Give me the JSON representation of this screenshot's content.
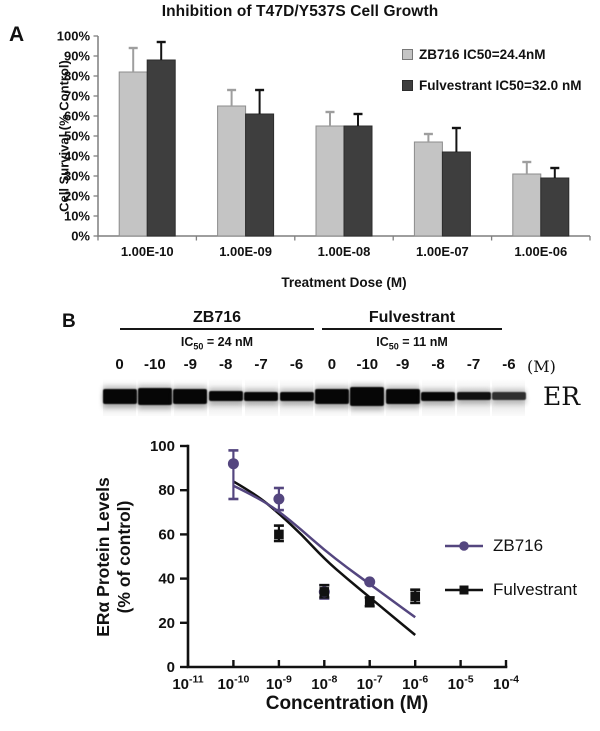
{
  "panels": {
    "a_label": "A",
    "b_label": "B"
  },
  "panel_b": {
    "blot": {
      "groups": [
        {
          "name": "ZB716",
          "ic50_prefix": "IC",
          "ic50_sub": "50",
          "ic50_rest": " = 24 nM"
        },
        {
          "name": "Fulvestrant",
          "ic50_prefix": "IC",
          "ic50_sub": "50",
          "ic50_rest": " = 11 nM"
        }
      ],
      "lane_labels": [
        "0",
        "-10",
        "-9",
        "-8",
        "-7",
        "-6",
        "0",
        "-10",
        "-9",
        "-8",
        "-7",
        "-6"
      ],
      "unit_label": "(M)",
      "band_label": "ER",
      "band_heights": [
        15,
        17,
        15,
        10,
        9,
        9,
        15,
        19,
        15,
        9,
        8,
        8
      ],
      "band_opacities": [
        1,
        1,
        1,
        1,
        1,
        1,
        1,
        1,
        1,
        1,
        0.95,
        0.82
      ]
    }
  },
  "chart_data": [
    {
      "id": "cell_growth_bar_chart",
      "type": "bar",
      "title": "Inhibition of T47D/Y537S Cell Growth",
      "xlabel": "Treatment Dose (M)",
      "ylabel": "Cell Survival (% Control)",
      "categories": [
        "1.00E-10",
        "1.00E-09",
        "1.00E-08",
        "1.00E-07",
        "1.00E-06"
      ],
      "series": [
        {
          "name": "ZB716 IC50=24.4nM",
          "color": "#c4c4c4",
          "border": "#8c8c8c",
          "error_color": "#9e9e9e",
          "values": [
            82,
            65,
            55,
            47,
            31
          ],
          "errors_up": [
            12,
            8,
            7,
            4,
            6
          ]
        },
        {
          "name": "Fulvestrant IC50=32.0 nM",
          "color": "#3e3e3e",
          "border": "#2c2c2c",
          "error_color": "#141414",
          "values": [
            88,
            61,
            55,
            42,
            29
          ],
          "errors_up": [
            9,
            12,
            6,
            12,
            5
          ]
        }
      ],
      "ylim": [
        0,
        100
      ],
      "ytick_step": 10,
      "ytick_suffix": "%",
      "grid": false,
      "legend_position": "upper-right",
      "axis_color": "#7f7f7f"
    },
    {
      "id": "er_protein_levels_chart",
      "type": "scatter-line",
      "xlabel": "Concentration (M)",
      "ylabel_lines": [
        "ERα Protein Levels",
        "(% of control)"
      ],
      "x_scale": "log10",
      "x_tick_exponents": [
        -11,
        -10,
        -9,
        -8,
        -7,
        -6,
        -5,
        -4
      ],
      "ylim": [
        0,
        100
      ],
      "ytick_step": 20,
      "grid": false,
      "legend_position": "right",
      "axis_color": "#111111",
      "series": [
        {
          "name": "ZB716",
          "color": "#54467f",
          "marker": "circle",
          "points": [
            {
              "x": -10,
              "y": 92,
              "lo": 76,
              "hi": 98
            },
            {
              "x": -9,
              "y": 76,
              "lo": 71,
              "hi": 81
            },
            {
              "x": -8,
              "y": 34,
              "lo": 31,
              "hi": 37
            },
            {
              "x": -7,
              "y": 38.5
            }
          ],
          "curve": [
            [
              -10,
              82
            ],
            [
              -9.5,
              77
            ],
            [
              -9,
              70.5
            ],
            [
              -8.5,
              62
            ],
            [
              -8,
              53
            ],
            [
              -7.5,
              45
            ],
            [
              -7,
              37.5
            ],
            [
              -6.5,
              30
            ],
            [
              -6,
              22.5
            ]
          ]
        },
        {
          "name": "Fulvestrant",
          "color": "#111111",
          "marker": "square",
          "points": [
            {
              "x": -9,
              "y": 60,
              "lo": 57,
              "hi": 64
            },
            {
              "x": -8,
              "y": 34,
              "lo": 31.5,
              "hi": 37
            },
            {
              "x": -7,
              "y": 29.5,
              "lo": 27.5,
              "hi": 31.5
            },
            {
              "x": -6,
              "y": 32,
              "lo": 29,
              "hi": 35
            }
          ],
          "curve": [
            [
              -10,
              84
            ],
            [
              -9.5,
              78
            ],
            [
              -9,
              69.5
            ],
            [
              -8.5,
              60
            ],
            [
              -8,
              49
            ],
            [
              -7.5,
              40
            ],
            [
              -7,
              31.5
            ],
            [
              -6.5,
              23
            ],
            [
              -6,
              14.5
            ]
          ]
        }
      ]
    }
  ]
}
